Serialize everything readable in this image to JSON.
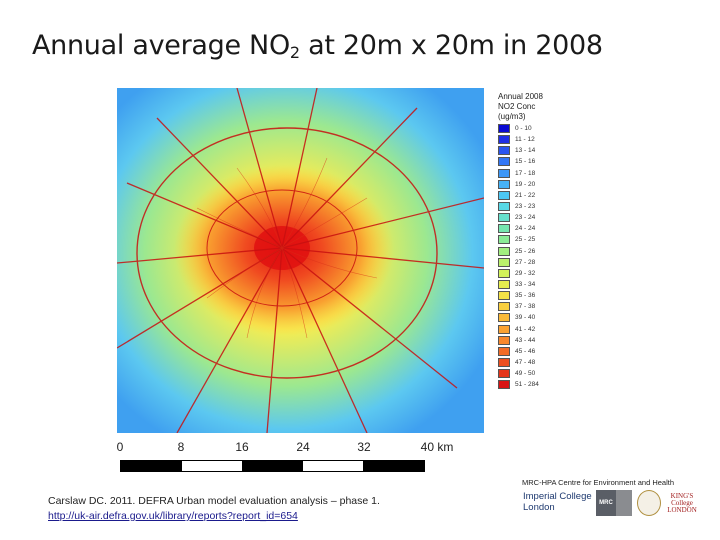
{
  "slide": {
    "title_main": "Annual average NO",
    "title_sub": "2",
    "title_rest": " at 20m x 20m in 2008"
  },
  "legend": {
    "title": "Annual 2008 NO2 Conc",
    "unit": "(ug/m3)",
    "items": [
      {
        "label": "0 - 10",
        "color": "#0a0ad2"
      },
      {
        "label": "11 - 12",
        "color": "#1f2ee6"
      },
      {
        "label": "13 - 14",
        "color": "#2a55f0"
      },
      {
        "label": "15 - 16",
        "color": "#3377f5"
      },
      {
        "label": "17 - 18",
        "color": "#3d97f7"
      },
      {
        "label": "19 - 20",
        "color": "#46b2f6"
      },
      {
        "label": "21 - 22",
        "color": "#4dc8f3"
      },
      {
        "label": "23 - 23",
        "color": "#58d8e6"
      },
      {
        "label": "23 - 24",
        "color": "#66e0cc"
      },
      {
        "label": "24 - 24",
        "color": "#76e6b0"
      },
      {
        "label": "25 - 25",
        "color": "#8aeb96"
      },
      {
        "label": "25 - 26",
        "color": "#a2ef80"
      },
      {
        "label": "27 - 28",
        "color": "#bbf26b"
      },
      {
        "label": "29 - 32",
        "color": "#d2f25a"
      },
      {
        "label": "33 - 34",
        "color": "#e6ee4e"
      },
      {
        "label": "35 - 36",
        "color": "#f3e246"
      },
      {
        "label": "37 - 38",
        "color": "#f9cf3f"
      },
      {
        "label": "39 - 40",
        "color": "#fbba38"
      },
      {
        "label": "41 - 42",
        "color": "#fba232"
      },
      {
        "label": "43 - 44",
        "color": "#f9882c"
      },
      {
        "label": "45 - 46",
        "color": "#f46c26"
      },
      {
        "label": "47 - 48",
        "color": "#ee5020"
      },
      {
        "label": "49 - 50",
        "color": "#e5351b"
      },
      {
        "label": "51 - 284",
        "color": "#d81414"
      }
    ]
  },
  "scale": {
    "labels": [
      "0",
      "8",
      "16",
      "24",
      "32",
      "40 km"
    ],
    "segment_colors": [
      "#000000",
      "#ffffff",
      "#000000",
      "#ffffff",
      "#000000"
    ]
  },
  "map": {
    "background_color": "#3fa0f0",
    "hotspot_color": "#e01010",
    "road_color": "#c81010"
  },
  "citation": {
    "line1": "Carslaw DC. 2011. DEFRA Urban model evaluation analysis – phase 1.",
    "link": "http://uk-air.defra.gov.uk/library/reports?report_id=654"
  },
  "branding": {
    "centre": "MRC-HPA Centre for Environment and Health",
    "imperial_line1": "Imperial College",
    "imperial_line2": "London",
    "mrc_label": "MRC",
    "kings_line1": "KING'S",
    "kings_line2": "College",
    "kings_line3": "LONDON"
  }
}
